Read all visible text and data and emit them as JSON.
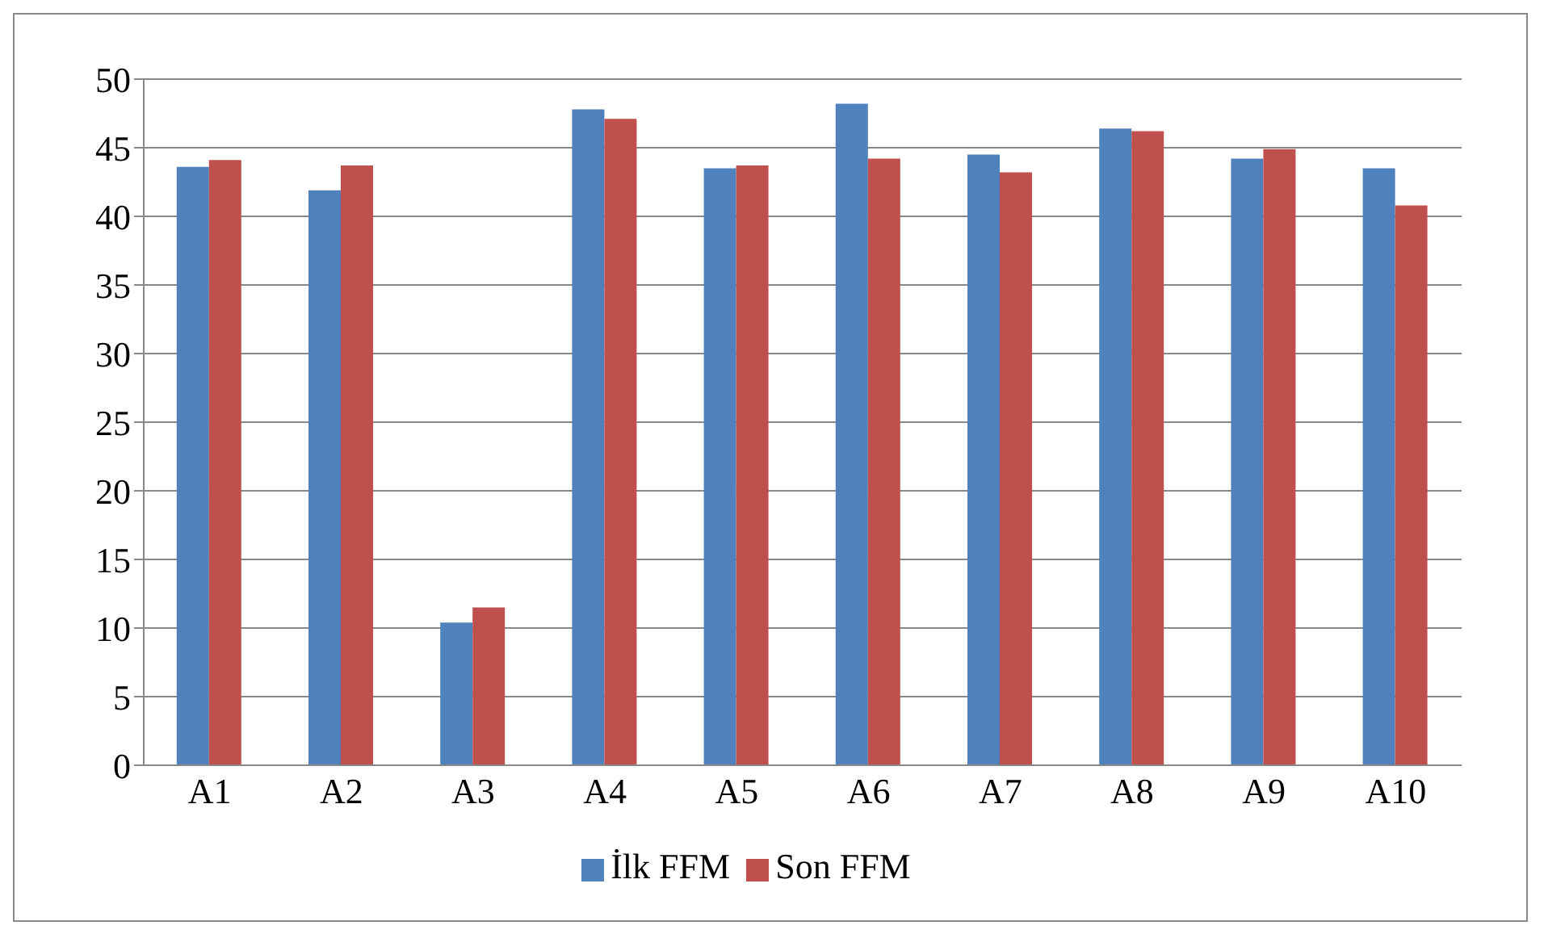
{
  "chart_data": {
    "type": "bar",
    "categories": [
      "A1",
      "A2",
      "A3",
      "A4",
      "A5",
      "A6",
      "A7",
      "A8",
      "A9",
      "A10"
    ],
    "series": [
      {
        "name": "İlk FFM",
        "color": "#4f81bd",
        "values": [
          43.6,
          41.9,
          10.4,
          47.8,
          43.5,
          48.2,
          44.5,
          46.4,
          44.2,
          43.5
        ]
      },
      {
        "name": "Son FFM",
        "color": "#c0504d",
        "values": [
          44.1,
          43.7,
          11.5,
          47.1,
          43.7,
          44.2,
          43.2,
          46.2,
          44.9,
          40.8
        ]
      }
    ],
    "ylim": [
      0,
      50
    ],
    "yticks": [
      0,
      5,
      10,
      15,
      20,
      25,
      30,
      35,
      40,
      45,
      50
    ],
    "grid": "y",
    "legend": "bottom"
  }
}
